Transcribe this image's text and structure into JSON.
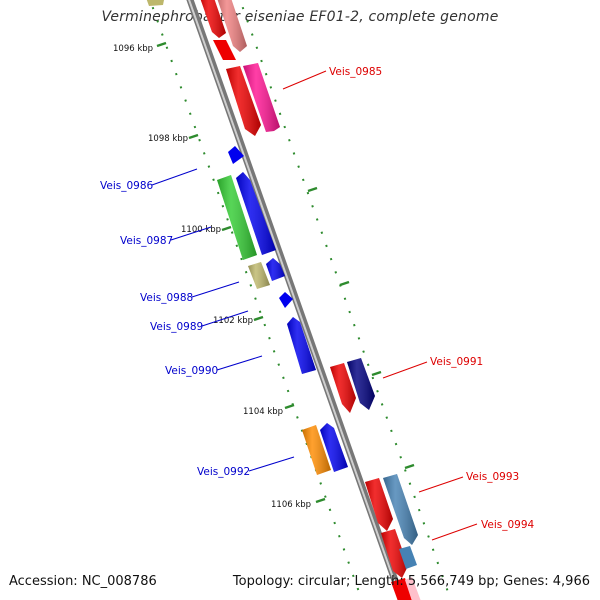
{
  "title": "Verminephrobacter eiseniae EF01-2, complete genome",
  "footer": {
    "accession": "Accession: NC_008786",
    "summary": "Topology: circular; Length: 5,566,749 bp; Genes: 4,966"
  },
  "colors": {
    "backbone": "#8c8c8c",
    "tick": "#2e8b2e",
    "label_plus": "#dd0000",
    "label_minus": "#0000cc"
  },
  "ticks": [
    {
      "label": "1096 kbp"
    },
    {
      "label": "1098 kbp"
    },
    {
      "label": "1100 kbp"
    },
    {
      "label": "1102 kbp"
    },
    {
      "label": "1104 kbp"
    },
    {
      "label": "1106 kbp"
    }
  ],
  "genes": [
    {
      "label": "Veis_0985",
      "strand": "plus"
    },
    {
      "label": "Veis_0986",
      "strand": "minus"
    },
    {
      "label": "Veis_0987",
      "strand": "minus"
    },
    {
      "label": "Veis_0988",
      "strand": "minus"
    },
    {
      "label": "Veis_0989",
      "strand": "minus"
    },
    {
      "label": "Veis_0990",
      "strand": "minus"
    },
    {
      "label": "Veis_0991",
      "strand": "plus"
    },
    {
      "label": "Veis_0992",
      "strand": "minus"
    },
    {
      "label": "Veis_0993",
      "strand": "plus"
    },
    {
      "label": "Veis_0994",
      "strand": "plus"
    }
  ]
}
